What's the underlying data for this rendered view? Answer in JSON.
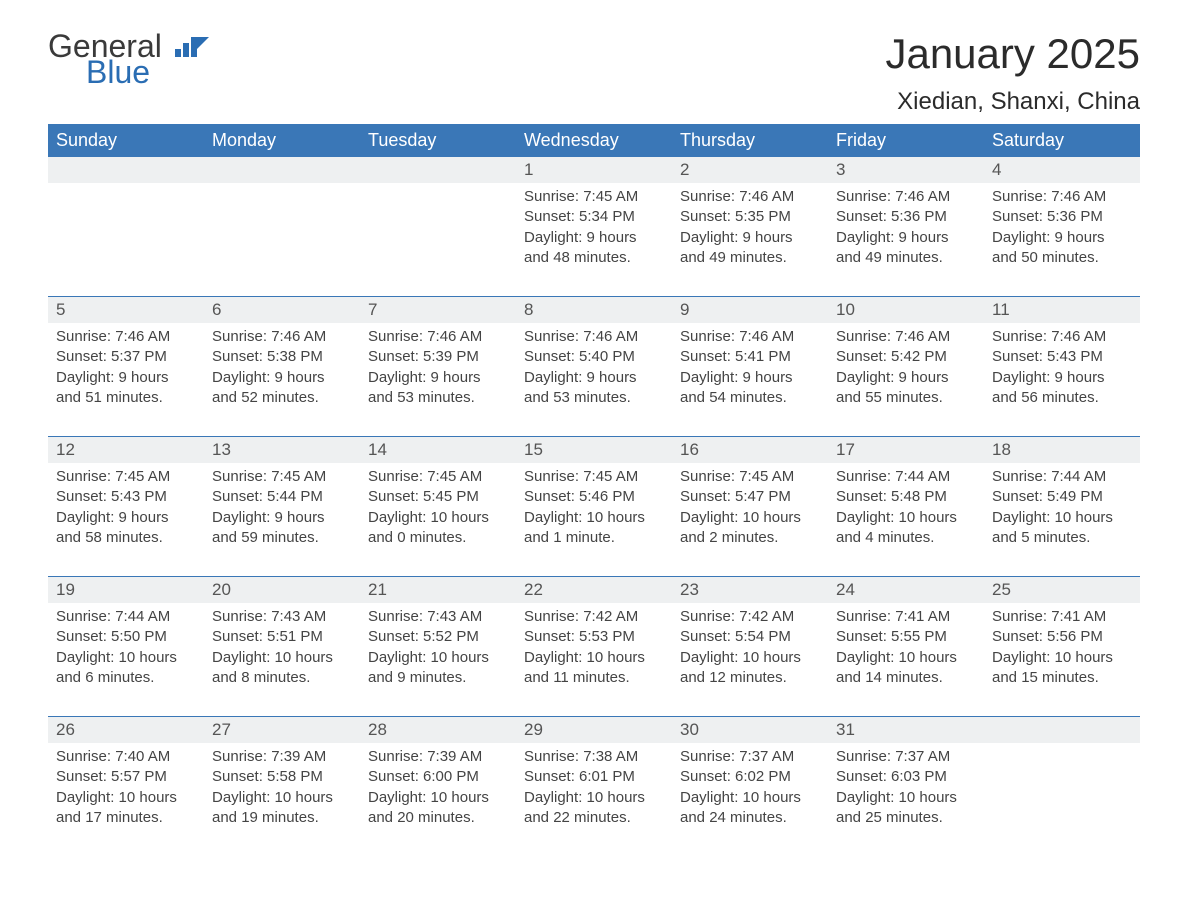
{
  "brand": {
    "general": "General",
    "blue": "Blue"
  },
  "title": "January 2025",
  "subtitle": "Xiedian, Shanxi, China",
  "weekday_headers": [
    "Sunday",
    "Monday",
    "Tuesday",
    "Wednesday",
    "Thursday",
    "Friday",
    "Saturday"
  ],
  "colors": {
    "header_bg": "#3a77b7",
    "header_text": "#ffffff",
    "daynum_bg": "#eef0f1",
    "row_divider": "#3a77b7",
    "brand_blue": "#2a6db3",
    "body_text": "#3a3a3a"
  },
  "grid": [
    [
      {
        "day": "",
        "sunrise": "",
        "sunset": "",
        "daylight": ""
      },
      {
        "day": "",
        "sunrise": "",
        "sunset": "",
        "daylight": ""
      },
      {
        "day": "",
        "sunrise": "",
        "sunset": "",
        "daylight": ""
      },
      {
        "day": "1",
        "sunrise": "Sunrise: 7:45 AM",
        "sunset": "Sunset: 5:34 PM",
        "daylight": "Daylight: 9 hours and 48 minutes."
      },
      {
        "day": "2",
        "sunrise": "Sunrise: 7:46 AM",
        "sunset": "Sunset: 5:35 PM",
        "daylight": "Daylight: 9 hours and 49 minutes."
      },
      {
        "day": "3",
        "sunrise": "Sunrise: 7:46 AM",
        "sunset": "Sunset: 5:36 PM",
        "daylight": "Daylight: 9 hours and 49 minutes."
      },
      {
        "day": "4",
        "sunrise": "Sunrise: 7:46 AM",
        "sunset": "Sunset: 5:36 PM",
        "daylight": "Daylight: 9 hours and 50 minutes."
      }
    ],
    [
      {
        "day": "5",
        "sunrise": "Sunrise: 7:46 AM",
        "sunset": "Sunset: 5:37 PM",
        "daylight": "Daylight: 9 hours and 51 minutes."
      },
      {
        "day": "6",
        "sunrise": "Sunrise: 7:46 AM",
        "sunset": "Sunset: 5:38 PM",
        "daylight": "Daylight: 9 hours and 52 minutes."
      },
      {
        "day": "7",
        "sunrise": "Sunrise: 7:46 AM",
        "sunset": "Sunset: 5:39 PM",
        "daylight": "Daylight: 9 hours and 53 minutes."
      },
      {
        "day": "8",
        "sunrise": "Sunrise: 7:46 AM",
        "sunset": "Sunset: 5:40 PM",
        "daylight": "Daylight: 9 hours and 53 minutes."
      },
      {
        "day": "9",
        "sunrise": "Sunrise: 7:46 AM",
        "sunset": "Sunset: 5:41 PM",
        "daylight": "Daylight: 9 hours and 54 minutes."
      },
      {
        "day": "10",
        "sunrise": "Sunrise: 7:46 AM",
        "sunset": "Sunset: 5:42 PM",
        "daylight": "Daylight: 9 hours and 55 minutes."
      },
      {
        "day": "11",
        "sunrise": "Sunrise: 7:46 AM",
        "sunset": "Sunset: 5:43 PM",
        "daylight": "Daylight: 9 hours and 56 minutes."
      }
    ],
    [
      {
        "day": "12",
        "sunrise": "Sunrise: 7:45 AM",
        "sunset": "Sunset: 5:43 PM",
        "daylight": "Daylight: 9 hours and 58 minutes."
      },
      {
        "day": "13",
        "sunrise": "Sunrise: 7:45 AM",
        "sunset": "Sunset: 5:44 PM",
        "daylight": "Daylight: 9 hours and 59 minutes."
      },
      {
        "day": "14",
        "sunrise": "Sunrise: 7:45 AM",
        "sunset": "Sunset: 5:45 PM",
        "daylight": "Daylight: 10 hours and 0 minutes."
      },
      {
        "day": "15",
        "sunrise": "Sunrise: 7:45 AM",
        "sunset": "Sunset: 5:46 PM",
        "daylight": "Daylight: 10 hours and 1 minute."
      },
      {
        "day": "16",
        "sunrise": "Sunrise: 7:45 AM",
        "sunset": "Sunset: 5:47 PM",
        "daylight": "Daylight: 10 hours and 2 minutes."
      },
      {
        "day": "17",
        "sunrise": "Sunrise: 7:44 AM",
        "sunset": "Sunset: 5:48 PM",
        "daylight": "Daylight: 10 hours and 4 minutes."
      },
      {
        "day": "18",
        "sunrise": "Sunrise: 7:44 AM",
        "sunset": "Sunset: 5:49 PM",
        "daylight": "Daylight: 10 hours and 5 minutes."
      }
    ],
    [
      {
        "day": "19",
        "sunrise": "Sunrise: 7:44 AM",
        "sunset": "Sunset: 5:50 PM",
        "daylight": "Daylight: 10 hours and 6 minutes."
      },
      {
        "day": "20",
        "sunrise": "Sunrise: 7:43 AM",
        "sunset": "Sunset: 5:51 PM",
        "daylight": "Daylight: 10 hours and 8 minutes."
      },
      {
        "day": "21",
        "sunrise": "Sunrise: 7:43 AM",
        "sunset": "Sunset: 5:52 PM",
        "daylight": "Daylight: 10 hours and 9 minutes."
      },
      {
        "day": "22",
        "sunrise": "Sunrise: 7:42 AM",
        "sunset": "Sunset: 5:53 PM",
        "daylight": "Daylight: 10 hours and 11 minutes."
      },
      {
        "day": "23",
        "sunrise": "Sunrise: 7:42 AM",
        "sunset": "Sunset: 5:54 PM",
        "daylight": "Daylight: 10 hours and 12 minutes."
      },
      {
        "day": "24",
        "sunrise": "Sunrise: 7:41 AM",
        "sunset": "Sunset: 5:55 PM",
        "daylight": "Daylight: 10 hours and 14 minutes."
      },
      {
        "day": "25",
        "sunrise": "Sunrise: 7:41 AM",
        "sunset": "Sunset: 5:56 PM",
        "daylight": "Daylight: 10 hours and 15 minutes."
      }
    ],
    [
      {
        "day": "26",
        "sunrise": "Sunrise: 7:40 AM",
        "sunset": "Sunset: 5:57 PM",
        "daylight": "Daylight: 10 hours and 17 minutes."
      },
      {
        "day": "27",
        "sunrise": "Sunrise: 7:39 AM",
        "sunset": "Sunset: 5:58 PM",
        "daylight": "Daylight: 10 hours and 19 minutes."
      },
      {
        "day": "28",
        "sunrise": "Sunrise: 7:39 AM",
        "sunset": "Sunset: 6:00 PM",
        "daylight": "Daylight: 10 hours and 20 minutes."
      },
      {
        "day": "29",
        "sunrise": "Sunrise: 7:38 AM",
        "sunset": "Sunset: 6:01 PM",
        "daylight": "Daylight: 10 hours and 22 minutes."
      },
      {
        "day": "30",
        "sunrise": "Sunrise: 7:37 AM",
        "sunset": "Sunset: 6:02 PM",
        "daylight": "Daylight: 10 hours and 24 minutes."
      },
      {
        "day": "31",
        "sunrise": "Sunrise: 7:37 AM",
        "sunset": "Sunset: 6:03 PM",
        "daylight": "Daylight: 10 hours and 25 minutes."
      },
      {
        "day": "",
        "sunrise": "",
        "sunset": "",
        "daylight": ""
      }
    ]
  ]
}
